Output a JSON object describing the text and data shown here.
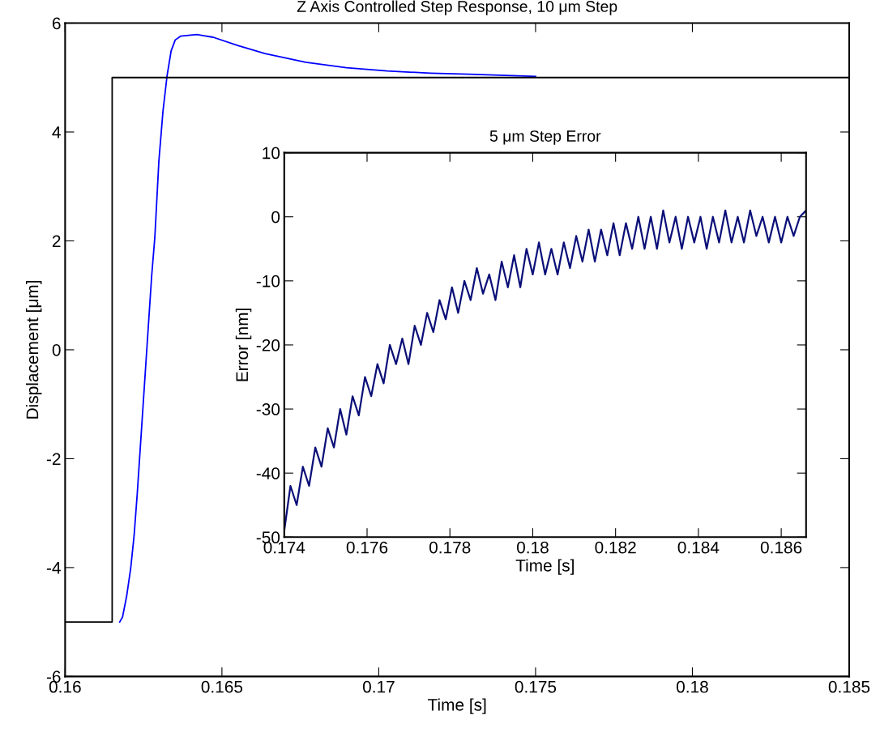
{
  "chart_data": [
    {
      "type": "line",
      "title": "Z Axis Controlled Step Response, 10 μm Step",
      "xlabel": "Time [s]",
      "ylabel": "Displacement [μm]",
      "xlim": [
        0.16,
        0.185
      ],
      "ylim": [
        -6,
        6
      ],
      "xticks": [
        0.16,
        0.165,
        0.17,
        0.175,
        0.18,
        0.185
      ],
      "yticks": [
        -6,
        -4,
        -2,
        0,
        2,
        4,
        6
      ],
      "grid": false,
      "legend": false,
      "series": [
        {
          "color": "#0000ff",
          "x": [
            0.16174,
            0.16183,
            0.16196,
            0.16209,
            0.1622,
            0.1623,
            0.16276,
            0.16286,
            0.16299,
            0.16312,
            0.16325,
            0.16338,
            0.16351,
            0.16368,
            0.1642,
            0.16472,
            0.1655,
            0.16637,
            0.16767,
            0.16897,
            0.17027,
            0.17166,
            0.17287,
            0.175
          ],
          "values": [
            -5,
            -4.91,
            -4.53,
            -4.02,
            -3.41,
            -2.64,
            1.36,
            2.06,
            3.47,
            4.38,
            5.03,
            5.49,
            5.69,
            5.76,
            5.79,
            5.74,
            5.59,
            5.44,
            5.28,
            5.18,
            5.12,
            5.08,
            5.06,
            5.02
          ]
        },
        {
          "color": "#000000",
          "x": [
            0.16,
            0.1615,
            0.1615,
            0.185
          ],
          "values": [
            -5,
            -5,
            5,
            5
          ]
        }
      ]
    },
    {
      "type": "line",
      "title": "5 μm Step Error",
      "xlabel": "Time [s]",
      "ylabel": "Error [nm]",
      "xlim": [
        0.174,
        0.1866
      ],
      "ylim": [
        -50,
        10
      ],
      "xticks": [
        0.174,
        0.176,
        0.178,
        0.18,
        0.182,
        0.184,
        0.186
      ],
      "yticks": [
        -50,
        -40,
        -30,
        -20,
        -10,
        0,
        10
      ],
      "grid": false,
      "legend": false,
      "series": [
        {
          "color": "#0a0f78",
          "x": [
            0.174,
            0.17415,
            0.1743,
            0.17445,
            0.1746,
            0.17475,
            0.1749,
            0.17505,
            0.1752,
            0.17535,
            0.1755,
            0.17565,
            0.1758,
            0.17595,
            0.1761,
            0.17625,
            0.1764,
            0.17655,
            0.1767,
            0.17685,
            0.177,
            0.17715,
            0.1773,
            0.17745,
            0.1776,
            0.17775,
            0.1779,
            0.17805,
            0.1782,
            0.17835,
            0.1785,
            0.17865,
            0.1788,
            0.17895,
            0.1791,
            0.17925,
            0.1794,
            0.17955,
            0.1797,
            0.17985,
            0.18,
            0.18015,
            0.1803,
            0.18045,
            0.1806,
            0.18075,
            0.1809,
            0.18105,
            0.1812,
            0.18135,
            0.1815,
            0.18165,
            0.1818,
            0.18195,
            0.1821,
            0.18225,
            0.1824,
            0.18255,
            0.1827,
            0.18285,
            0.183,
            0.18315,
            0.1833,
            0.18345,
            0.1836,
            0.18375,
            0.1839,
            0.18405,
            0.1842,
            0.18435,
            0.1845,
            0.18465,
            0.1848,
            0.18495,
            0.1851,
            0.18525,
            0.1854,
            0.18555,
            0.1857,
            0.18585,
            0.186,
            0.18615,
            0.1863,
            0.18645,
            0.1866
          ],
          "values": [
            -49,
            -42,
            -45,
            -39,
            -42,
            -36,
            -39,
            -33,
            -36,
            -30,
            -34,
            -28,
            -31,
            -25,
            -28,
            -23,
            -26,
            -20,
            -23,
            -19,
            -23,
            -17,
            -20,
            -15,
            -18,
            -13,
            -16,
            -11,
            -15,
            -10,
            -13,
            -8,
            -12,
            -9,
            -13,
            -7,
            -11,
            -6,
            -11,
            -5,
            -9,
            -4,
            -9,
            -5,
            -9,
            -4,
            -8,
            -3,
            -7,
            -2,
            -7,
            -2,
            -6,
            -1,
            -6,
            -1,
            -5,
            0,
            -5,
            0,
            -5,
            1,
            -4,
            0,
            -5,
            0,
            -4,
            0,
            -5,
            0,
            -4,
            1,
            -4,
            0,
            -4,
            1,
            -3,
            0,
            -4,
            0,
            -4,
            0,
            -3,
            0,
            1
          ]
        }
      ]
    }
  ]
}
